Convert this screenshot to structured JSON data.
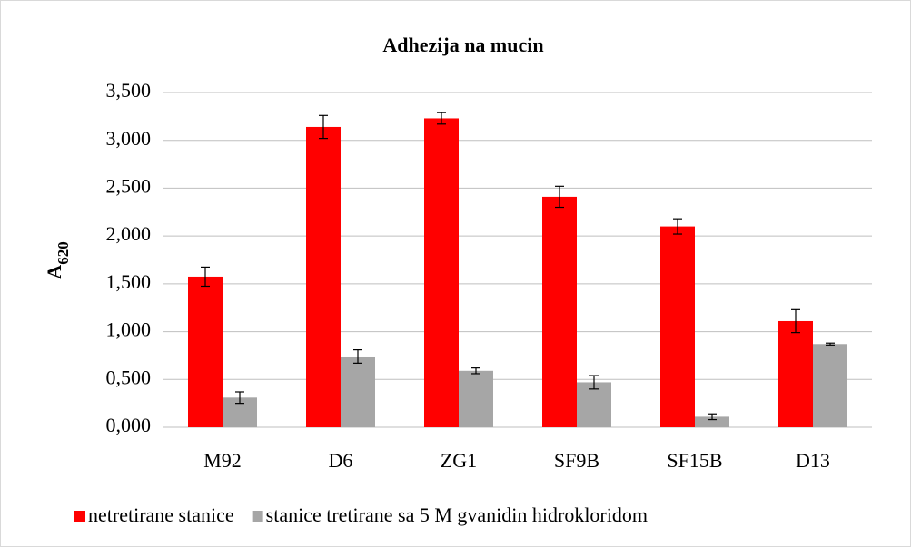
{
  "chart_data": {
    "type": "bar",
    "title": "Adhezija na mucin",
    "ylabel": {
      "base": "A",
      "sub": "620"
    },
    "categories": [
      "M92",
      "D6",
      "ZG1",
      "SF9B",
      "SF15B",
      "D13"
    ],
    "series": [
      {
        "name": "netretirane stanice",
        "color": "#ff0000",
        "values": [
          1.575,
          3.14,
          3.23,
          2.41,
          2.1,
          1.11
        ],
        "errors": [
          0.1,
          0.12,
          0.06,
          0.11,
          0.08,
          0.12
        ]
      },
      {
        "name": "stanice tretirane sa 5 M gvanidin hidrokloridom",
        "color": "#a6a6a6",
        "values": [
          0.31,
          0.74,
          0.59,
          0.47,
          0.11,
          0.87
        ],
        "errors": [
          0.06,
          0.07,
          0.03,
          0.07,
          0.03,
          0.01
        ]
      }
    ],
    "ylim": [
      0,
      3.5
    ],
    "yticks": [
      {
        "value": 0,
        "label": "0,000"
      },
      {
        "value": 0.5,
        "label": "0,500"
      },
      {
        "value": 1,
        "label": "1,000"
      },
      {
        "value": 1.5,
        "label": "1,500"
      },
      {
        "value": 2,
        "label": "2,000"
      },
      {
        "value": 2.5,
        "label": "2,500"
      },
      {
        "value": 3,
        "label": "3,000"
      },
      {
        "value": 3.5,
        "label": "3,500"
      }
    ],
    "grid": true,
    "legend": "bottom"
  }
}
